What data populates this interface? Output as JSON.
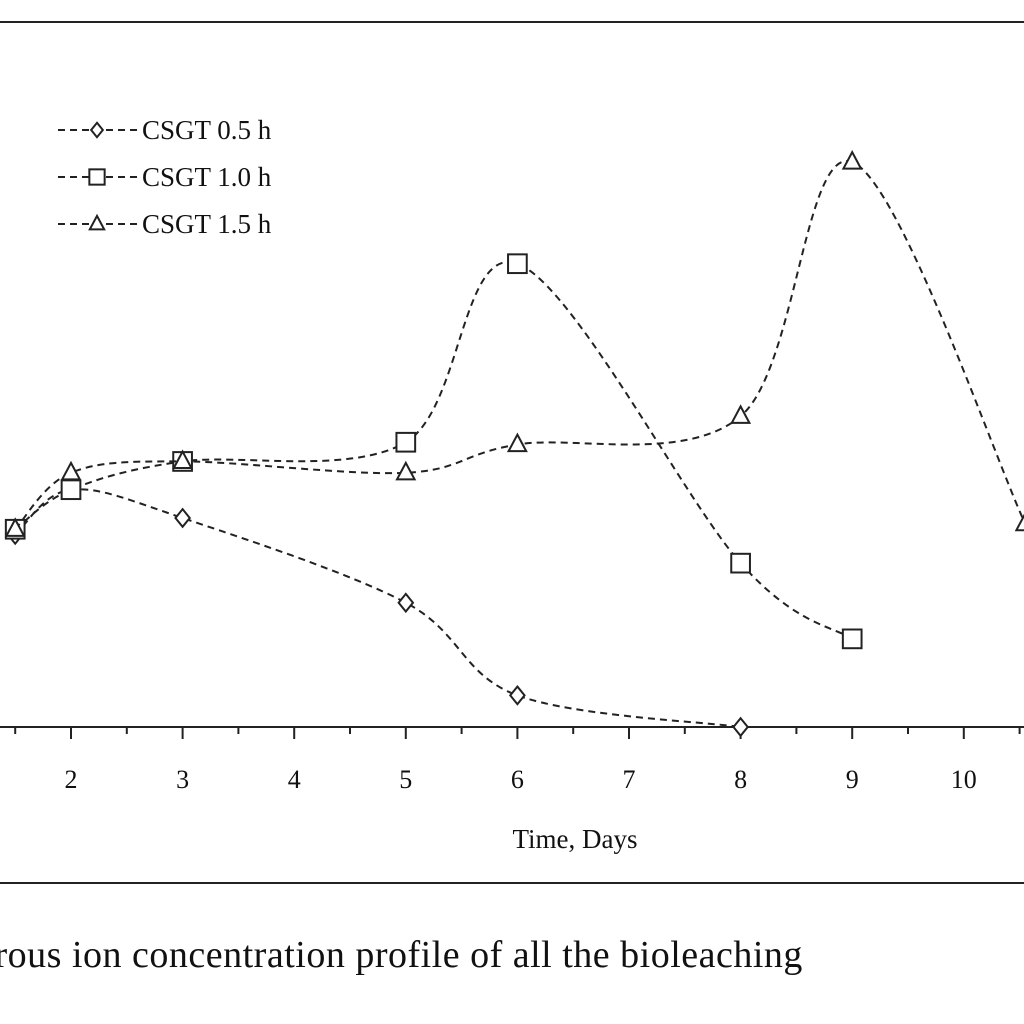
{
  "chart_data": {
    "type": "line",
    "title": "",
    "xlabel": "Time, Days",
    "ylabel": "",
    "x_ticks": [
      "2",
      "3",
      "4",
      "5",
      "6",
      "7",
      "8",
      "9",
      "10"
    ],
    "grid": false,
    "legend_position": "top-left",
    "series": [
      {
        "name": "CSGT 0.5 h",
        "marker": "diamond",
        "x": [
          1.5,
          2,
          3,
          5,
          6,
          8
        ],
        "y": [
          1.7,
          2.1,
          1.85,
          1.1,
          0.28,
          0.0
        ]
      },
      {
        "name": "CSGT 1.0 h",
        "marker": "square",
        "x": [
          1.5,
          2,
          3,
          5,
          6,
          8,
          9
        ],
        "y": [
          1.75,
          2.1,
          2.35,
          2.52,
          4.1,
          1.45,
          0.78
        ]
      },
      {
        "name": "CSGT 1.5 h",
        "marker": "triangle",
        "x": [
          1.5,
          2,
          3,
          5,
          6,
          8,
          9,
          10.55
        ],
        "y": [
          1.75,
          2.25,
          2.35,
          2.25,
          2.5,
          2.75,
          5.0,
          1.8
        ]
      }
    ]
  },
  "caption": "errous ion concentration profile of all the bioleaching"
}
